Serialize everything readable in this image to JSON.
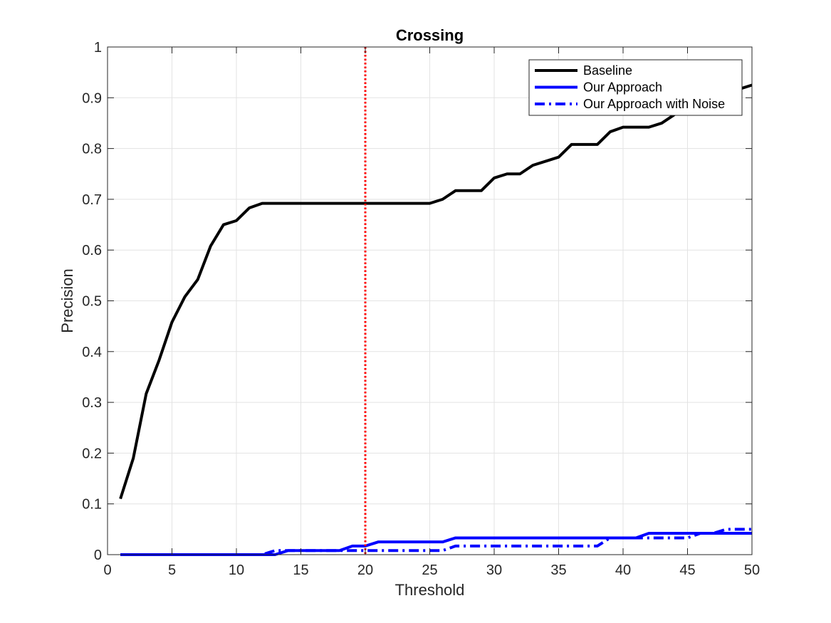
{
  "chart_data": {
    "type": "line",
    "title": "Crossing",
    "xlabel": "Threshold",
    "ylabel": "Precision",
    "xlim": [
      0,
      50
    ],
    "ylim": [
      0,
      1
    ],
    "xticks": [
      0,
      5,
      10,
      15,
      20,
      25,
      30,
      35,
      40,
      45,
      50
    ],
    "yticks": [
      0,
      0.1,
      0.2,
      0.3,
      0.4,
      0.5,
      0.6,
      0.7,
      0.8,
      0.9,
      1
    ],
    "xtick_labels": [
      "0",
      "5",
      "10",
      "15",
      "20",
      "25",
      "30",
      "35",
      "40",
      "45",
      "50"
    ],
    "ytick_labels": [
      "0",
      "0.1",
      "0.2",
      "0.3",
      "0.4",
      "0.5",
      "0.6",
      "0.7",
      "0.8",
      "0.9",
      "1"
    ],
    "grid": true,
    "legend_position": "top-right",
    "x": [
      1,
      2,
      3,
      4,
      5,
      6,
      7,
      8,
      9,
      10,
      11,
      12,
      13,
      14,
      15,
      16,
      17,
      18,
      19,
      20,
      21,
      22,
      23,
      24,
      25,
      26,
      27,
      28,
      29,
      30,
      31,
      32,
      33,
      34,
      35,
      36,
      37,
      38,
      39,
      40,
      41,
      42,
      43,
      44,
      45,
      46,
      47,
      48,
      49,
      50
    ],
    "series": [
      {
        "name": "Baseline",
        "color": "#000000",
        "line_style": "solid",
        "values": [
          0.11,
          0.19,
          0.317,
          0.383,
          0.458,
          0.508,
          0.542,
          0.608,
          0.65,
          0.658,
          0.683,
          0.692,
          0.692,
          0.692,
          0.692,
          0.692,
          0.692,
          0.692,
          0.692,
          0.692,
          0.692,
          0.692,
          0.692,
          0.692,
          0.692,
          0.7,
          0.717,
          0.717,
          0.717,
          0.742,
          0.75,
          0.75,
          0.767,
          0.775,
          0.783,
          0.808,
          0.808,
          0.808,
          0.833,
          0.842,
          0.842,
          0.842,
          0.85,
          0.867,
          0.883,
          0.892,
          0.9,
          0.908,
          0.917,
          0.925
        ]
      },
      {
        "name": "Our Approach",
        "color": "#0000ff",
        "line_style": "solid",
        "values": [
          0,
          0,
          0,
          0,
          0,
          0,
          0,
          0,
          0,
          0,
          0,
          0,
          0,
          0.008,
          0.008,
          0.008,
          0.008,
          0.008,
          0.017,
          0.017,
          0.025,
          0.025,
          0.025,
          0.025,
          0.025,
          0.025,
          0.033,
          0.033,
          0.033,
          0.033,
          0.033,
          0.033,
          0.033,
          0.033,
          0.033,
          0.033,
          0.033,
          0.033,
          0.033,
          0.033,
          0.033,
          0.042,
          0.042,
          0.042,
          0.042,
          0.042,
          0.042,
          0.042,
          0.042,
          0.042
        ]
      },
      {
        "name": "Our Approach with Noise",
        "color": "#0000ff",
        "line_style": "dash-dot",
        "values": [
          0,
          0,
          0,
          0,
          0,
          0,
          0,
          0,
          0,
          0,
          0,
          0,
          0.008,
          0.008,
          0.008,
          0.008,
          0.008,
          0.008,
          0.008,
          0.008,
          0.008,
          0.008,
          0.008,
          0.008,
          0.008,
          0.008,
          0.017,
          0.017,
          0.017,
          0.017,
          0.017,
          0.017,
          0.017,
          0.017,
          0.017,
          0.017,
          0.017,
          0.017,
          0.033,
          0.033,
          0.033,
          0.033,
          0.033,
          0.033,
          0.033,
          0.042,
          0.042,
          0.05,
          0.05,
          0.05
        ]
      }
    ],
    "vertical_marker": {
      "x": 20,
      "color": "#ff0000",
      "line_style": "dotted"
    }
  }
}
